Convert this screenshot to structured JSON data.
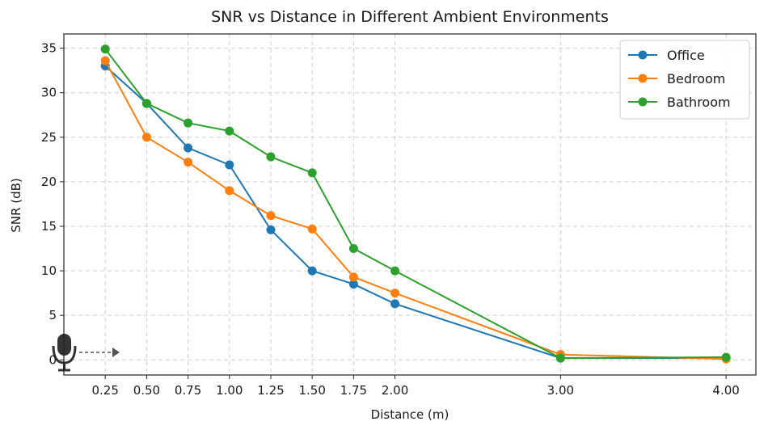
{
  "chart_data": {
    "type": "line",
    "title": "SNR vs Distance in Different Ambient Environments",
    "xlabel": "Distance (m)",
    "ylabel": "SNR (dB)",
    "x": [
      0.25,
      0.5,
      0.75,
      1.0,
      1.25,
      1.5,
      1.75,
      2.0,
      3.0,
      4.0
    ],
    "x_tick_labels": [
      "0.25",
      "0.50",
      "0.75",
      "1.00",
      "1.25",
      "1.50",
      "1.75",
      "2.00",
      "3.00",
      "4.00"
    ],
    "y_ticks": [
      0,
      5,
      10,
      15,
      20,
      25,
      30,
      35
    ],
    "y_tick_labels": [
      "0",
      "5",
      "10",
      "15",
      "20",
      "25",
      "30",
      "35"
    ],
    "xlim": [
      -0.0,
      4.18
    ],
    "ylim": [
      -1.7,
      36.6
    ],
    "grid": true,
    "legend_position": "top-right",
    "series": [
      {
        "name": "Office",
        "color": "#1f77b4",
        "values": [
          33.0,
          28.8,
          23.8,
          21.9,
          14.6,
          10.0,
          8.5,
          6.3,
          0.2,
          0.2
        ]
      },
      {
        "name": "Bedroom",
        "color": "#ff7f0e",
        "values": [
          33.6,
          25.0,
          22.2,
          19.0,
          16.2,
          14.7,
          9.3,
          7.5,
          0.6,
          0.1
        ]
      },
      {
        "name": "Bathroom",
        "color": "#2ca02c",
        "values": [
          34.9,
          28.8,
          26.6,
          25.7,
          22.8,
          21.0,
          12.5,
          10.0,
          0.2,
          0.3
        ]
      }
    ],
    "annotation_icons": [
      "microphone-icon",
      "dashed-arrow-icon"
    ]
  }
}
